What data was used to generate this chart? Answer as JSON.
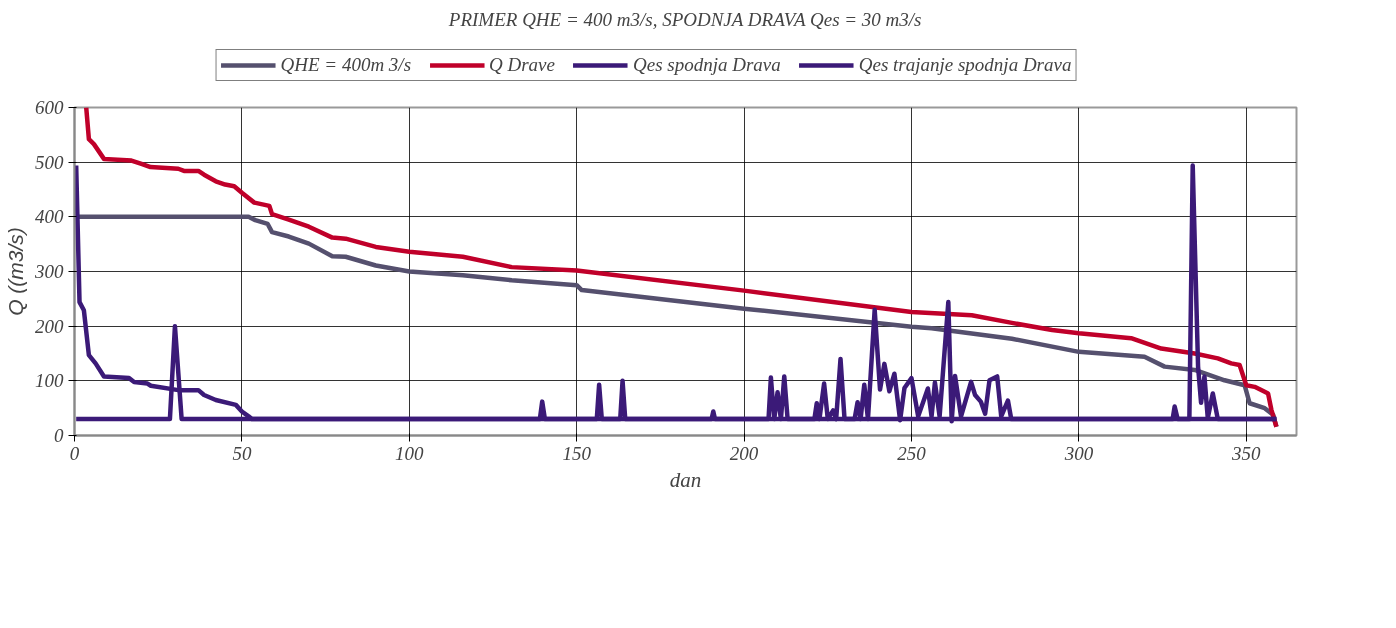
{
  "chart_data": {
    "type": "line",
    "title": "PRIMER QHE = 400 m3/s, SPODNJA DRAVA Qes = 30 m3/s",
    "xlabel": "dan",
    "ylabel": "Q ((m3/s)",
    "xlim": [
      0,
      365
    ],
    "xticks": [
      0,
      50,
      100,
      150,
      200,
      250,
      300,
      350
    ],
    "ylim": [
      0,
      600
    ],
    "yticks": [
      0,
      100,
      200,
      300,
      400,
      500,
      600
    ],
    "grid": true,
    "legend": "top",
    "series": [
      {
        "name": "QHE = 400m 3/s",
        "color": "#55506e",
        "x": [
          1,
          52,
          54,
          57.7,
          59,
          64,
          70,
          77,
          81,
          90,
          100,
          116,
          130.6,
          150,
          151.5,
          200,
          250,
          256,
          280,
          300,
          319.6,
          325.6,
          334.6,
          343.5,
          349.5,
          351,
          355.5,
          358,
          359
        ],
        "values": [
          400,
          400,
          394,
          387,
          372,
          364,
          351,
          328,
          327,
          311,
          300,
          293,
          284,
          275,
          266,
          232,
          199,
          196,
          177,
          153,
          144,
          126,
          120,
          101,
          92,
          59,
          50,
          38,
          16
        ]
      },
      {
        "name": "Q Drave",
        "color": "#c0002a",
        "x": [
          3.5,
          4.3,
          5.8,
          8.8,
          17,
          20,
          22.7,
          31,
          32.7,
          37,
          38.7,
          42.2,
          45,
          47.7,
          50,
          53.7,
          58.2,
          59,
          64,
          70,
          77,
          81,
          90,
          100,
          116,
          130.6,
          150,
          200,
          250,
          268,
          280,
          292,
          300,
          315.6,
          324.6,
          334.6,
          341.5,
          345.5,
          348,
          350,
          352.5,
          355.5,
          356.5,
          357.5,
          359
        ],
        "values": [
          600,
          542,
          533,
          506,
          503,
          497,
          491,
          488,
          484,
          484,
          477,
          465,
          459,
          456,
          444,
          426,
          420,
          405,
          395,
          382,
          362,
          360,
          345,
          336,
          327,
          308,
          302,
          265,
          226,
          220,
          206,
          193,
          187,
          178,
          159,
          150,
          141,
          132,
          129,
          92,
          89,
          80,
          77,
          47,
          16
        ]
      },
      {
        "name": "Qes spodnja Drava",
        "color": "#3b1a78",
        "x": [
          0.5,
          28.5,
          30,
          32,
          139,
          139.7,
          140.5,
          156,
          156.7,
          157.5,
          163,
          163.7,
          164.5,
          190.3,
          190.8,
          191.3,
          207.3,
          208,
          209,
          210,
          211,
          212,
          213,
          221,
          221.7,
          222.5,
          223.9,
          225,
          226.6,
          227.5,
          228.8,
          230,
          233,
          233.9,
          234.8,
          235.9,
          237,
          239,
          240.6,
          241.9,
          243.4,
          244.9,
          246.6,
          247.9,
          250,
          252,
          254.9,
          256,
          257,
          258.4,
          261,
          262,
          263,
          264.8,
          267.8,
          269,
          270.7,
          272,
          273.3,
          275.6,
          276.8,
          278.8,
          279.8,
          328,
          328.6,
          329.5,
          333,
          334,
          335.6,
          336.5,
          337.5,
          338.5,
          340,
          341.5,
          359
        ],
        "values": [
          30,
          30,
          200,
          30,
          30,
          62,
          30,
          30,
          93,
          30,
          30,
          100,
          30,
          30,
          44,
          30,
          30,
          106,
          30,
          79,
          30,
          108,
          30,
          30,
          59,
          30,
          95,
          30,
          46,
          30,
          140,
          30,
          30,
          61,
          30,
          93,
          30,
          230,
          84,
          131,
          81,
          113,
          28,
          87,
          105,
          35,
          86,
          35,
          97,
          35,
          244,
          26,
          109,
          35,
          98,
          74,
          62,
          40,
          101,
          108,
          35,
          64,
          30,
          30,
          53,
          30,
          30,
          494,
          126,
          60,
          108,
          32,
          77,
          30,
          30
        ]
      },
      {
        "name": "Qes trajanje spodnja Drava",
        "color": "#3b1a78",
        "x": [
          0.5,
          1.5,
          2.8,
          4.3,
          6.3,
          8.8,
          16.3,
          17.8,
          21.8,
          22.8,
          31,
          37,
          38.7,
          42.2,
          48.2,
          50,
          52,
          53,
          359
        ],
        "values": [
          494,
          244,
          229,
          147,
          132,
          108,
          105,
          98,
          95,
          91,
          83,
          83,
          74,
          65,
          56,
          44,
          35,
          30,
          30
        ]
      }
    ]
  }
}
